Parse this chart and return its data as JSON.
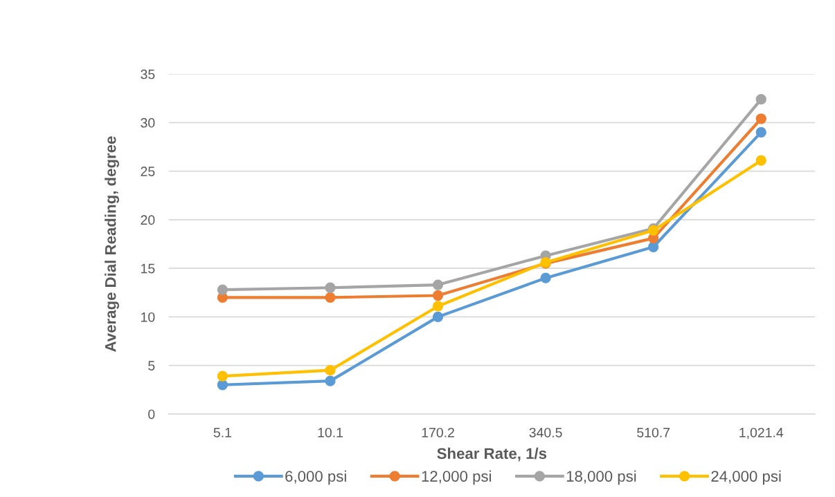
{
  "chart_data": {
    "type": "line",
    "xlabel": "Shear Rate, 1/s",
    "ylabel": "Average Dial Reading, degree",
    "categories": [
      "5.1",
      "10.1",
      "170.2",
      "340.5",
      "510.7",
      "1,021.4"
    ],
    "series": [
      {
        "name": "6,000 psi",
        "color": "#5b9bd5",
        "values": [
          3.0,
          3.4,
          10.0,
          14.0,
          17.2,
          29.0
        ]
      },
      {
        "name": "12,000 psi",
        "color": "#ed7d31",
        "values": [
          12.0,
          12.0,
          12.2,
          15.5,
          18.1,
          30.4
        ]
      },
      {
        "name": "18,000 psi",
        "color": "#a5a5a5",
        "values": [
          12.8,
          13.0,
          13.3,
          16.3,
          19.1,
          32.4
        ]
      },
      {
        "name": "24,000 psi",
        "color": "#ffc000",
        "values": [
          3.9,
          4.5,
          11.1,
          15.6,
          18.9,
          26.1
        ]
      }
    ],
    "ylim": [
      0,
      35
    ],
    "yticks": [
      0,
      5,
      10,
      15,
      20,
      25,
      30,
      35
    ],
    "grid": "y",
    "legend": "bottom",
    "marker": "circle",
    "line_style": "solid"
  }
}
